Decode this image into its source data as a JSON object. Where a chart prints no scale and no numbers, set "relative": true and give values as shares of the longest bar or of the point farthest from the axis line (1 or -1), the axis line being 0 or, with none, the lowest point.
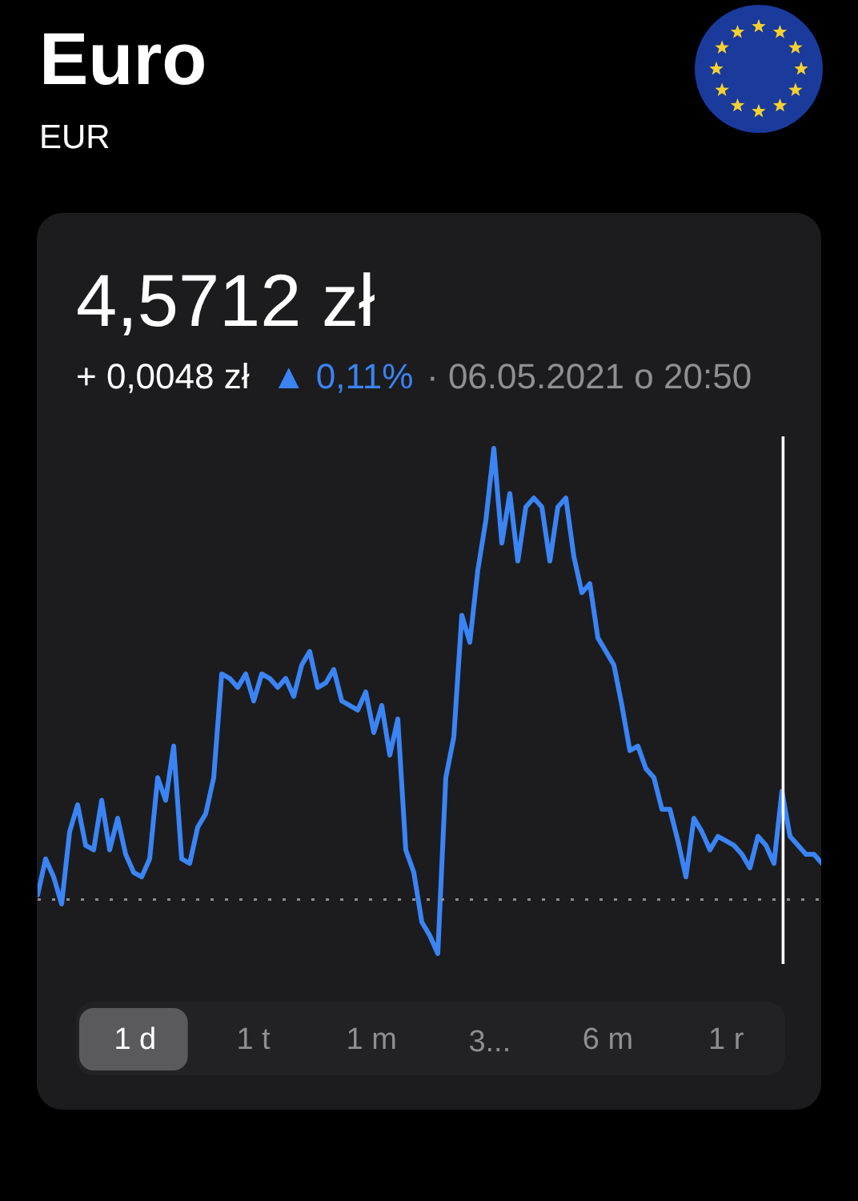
{
  "chart_data": {
    "type": "line",
    "title": "Euro",
    "subtitle": "EUR",
    "annotations": [
      "4,5712 zł",
      "+ 0,0048 zł",
      "▲ 0,11%",
      "· 06.05.2021 o 20:50",
      "1 d",
      "1 t",
      "1 m",
      "3...",
      "6 m",
      "1 r"
    ],
    "relative": true,
    "tick_labels": false,
    "categories": [
      null,
      null,
      null,
      null,
      null,
      null,
      null,
      null,
      null,
      null,
      null,
      null,
      null,
      null,
      null,
      null,
      null,
      null,
      null,
      null,
      null,
      null,
      null,
      null,
      null,
      null,
      null,
      null,
      null,
      null,
      null,
      null,
      null,
      null,
      null,
      null,
      null,
      null,
      null,
      null,
      null,
      null,
      null,
      null,
      null,
      null,
      null,
      null,
      null,
      null,
      null,
      null,
      null,
      null,
      null,
      null,
      null,
      null,
      null,
      null,
      null,
      null,
      null,
      null,
      null,
      null,
      null,
      null,
      null,
      null,
      null,
      null,
      null,
      null,
      null,
      null,
      null,
      null,
      null,
      null,
      null,
      null,
      null,
      null,
      null,
      null,
      null,
      null,
      null,
      null,
      null,
      null,
      null,
      null,
      null,
      null,
      null,
      null,
      null
    ],
    "series": [
      {
        "color": "#3a84f5",
        "values": [
          0.01,
          0.09,
          0.05,
          -0.01,
          0.15,
          0.21,
          0.12,
          0.11,
          0.22,
          0.11,
          0.18,
          0.1,
          0.06,
          0.05,
          0.09,
          0.27,
          0.22,
          0.34,
          0.09,
          0.08,
          0.16,
          0.19,
          0.27,
          0.5,
          0.49,
          0.47,
          0.5,
          0.44,
          0.5,
          0.49,
          0.47,
          0.49,
          0.45,
          0.52,
          0.55,
          0.47,
          0.48,
          0.51,
          0.44,
          0.43,
          0.42,
          0.46,
          0.37,
          0.43,
          0.32,
          0.4,
          0.11,
          0.06,
          -0.05,
          -0.08,
          -0.12,
          0.27,
          0.36,
          0.63,
          0.57,
          0.73,
          0.84,
          1,
          0.79,
          0.9,
          0.75,
          0.87,
          0.89,
          0.87,
          0.75,
          0.87,
          0.89,
          0.76,
          0.68,
          0.7,
          0.58,
          0.55,
          0.52,
          0.43,
          0.33,
          0.34,
          0.29,
          0.27,
          0.2,
          0.2,
          0.13,
          0.05,
          0.18,
          0.15,
          0.11,
          0.14,
          0.13,
          0.12,
          0.1,
          0.07,
          0.14,
          0.12,
          0.08,
          0.24,
          0.14,
          0.12,
          0.1,
          0.1,
          0.08
        ]
      }
    ],
    "ref_lines": [
      {
        "axis": "y",
        "value": 0,
        "color": "#8e8e93",
        "line_style": "dotted"
      }
    ]
  }
}
